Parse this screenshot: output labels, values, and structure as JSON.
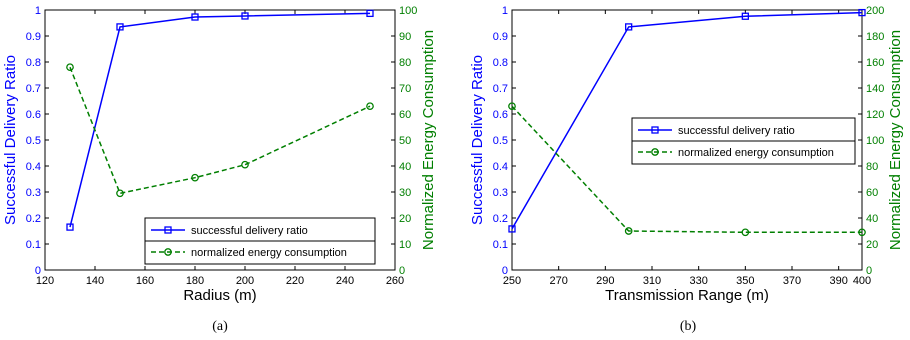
{
  "chart_data": [
    {
      "type": "line",
      "caption": "(a)",
      "xlabel": "Radius (m)",
      "ylabel_left": "Successful Delivery Ratio",
      "ylabel_right": "Normalized Energy Consumption",
      "xlim": [
        120,
        260
      ],
      "xticks": [
        120,
        140,
        160,
        180,
        200,
        220,
        240,
        260
      ],
      "ylim_left": [
        0,
        1
      ],
      "yticks_left": [
        0,
        0.1,
        0.2,
        0.3,
        0.4,
        0.5,
        0.6,
        0.7,
        0.8,
        0.9,
        1
      ],
      "ylim_right": [
        0,
        100
      ],
      "yticks_right": [
        0,
        10,
        20,
        30,
        40,
        50,
        60,
        70,
        80,
        90,
        100
      ],
      "legend_position": "bottom-right",
      "series": [
        {
          "name": "successful delivery ratio",
          "axis": "left",
          "color": "#0000ff",
          "style": "solid",
          "marker": "square",
          "x": [
            130,
            150,
            180,
            200,
            250
          ],
          "y": [
            0.165,
            0.935,
            0.973,
            0.977,
            0.987
          ]
        },
        {
          "name": "normalized energy consumption",
          "axis": "right",
          "color": "#007f00",
          "style": "dashed",
          "marker": "circle",
          "x": [
            130,
            150,
            180,
            200,
            250
          ],
          "y": [
            78,
            29.5,
            35.5,
            40.5,
            63
          ]
        }
      ]
    },
    {
      "type": "line",
      "caption": "(b)",
      "xlabel": "Transmission Range (m)",
      "ylabel_left": "Successful Delivery Ratio",
      "ylabel_right": "Normalized Energy Consumption",
      "xlim": [
        250,
        400
      ],
      "xticks": [
        250,
        270,
        290,
        310,
        330,
        350,
        370,
        390,
        400
      ],
      "ylim_left": [
        0,
        1
      ],
      "yticks_left": [
        0,
        0.1,
        0.2,
        0.3,
        0.4,
        0.5,
        0.6,
        0.7,
        0.8,
        0.9,
        1
      ],
      "ylim_right": [
        0,
        200
      ],
      "yticks_right": [
        0,
        20,
        40,
        60,
        80,
        100,
        120,
        140,
        160,
        180,
        200
      ],
      "legend_position": "right",
      "series": [
        {
          "name": "successful delivery ratio",
          "axis": "left",
          "color": "#0000ff",
          "style": "solid",
          "marker": "square",
          "x": [
            250,
            300,
            350,
            400
          ],
          "y": [
            0.158,
            0.935,
            0.976,
            0.99
          ]
        },
        {
          "name": "normalized energy consumption",
          "axis": "right",
          "color": "#007f00",
          "style": "dashed",
          "marker": "circle",
          "x": [
            250,
            300,
            350,
            400
          ],
          "y": [
            126,
            30,
            29,
            29
          ]
        }
      ]
    }
  ],
  "colors": {
    "left_axis": "#0000ff",
    "right_axis": "#007f00",
    "frame": "#000000"
  }
}
